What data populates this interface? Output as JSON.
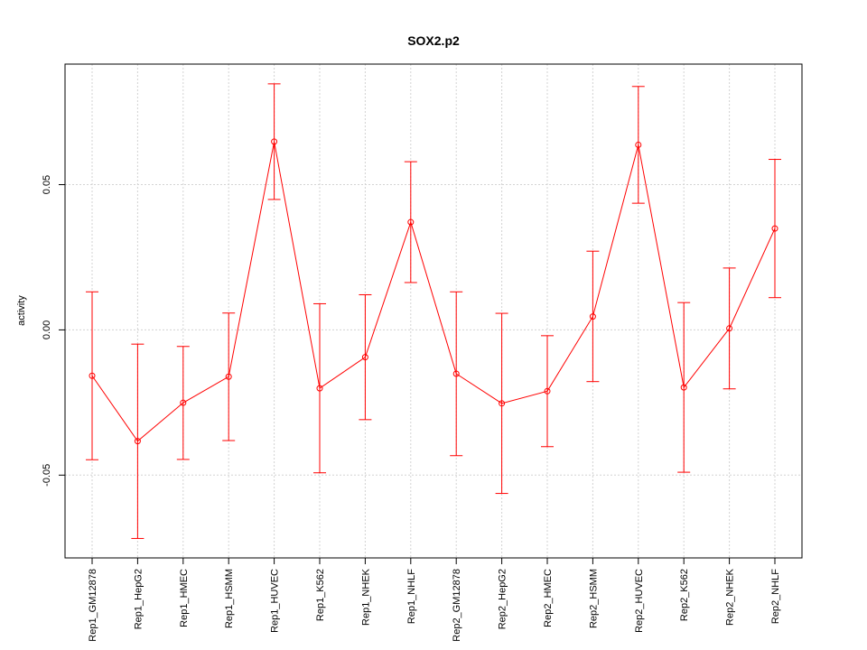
{
  "chart_data": {
    "type": "line",
    "title": "SOX2.p2",
    "xlabel": "",
    "ylabel": "activity",
    "ylim": [
      -0.0785,
      0.0915
    ],
    "yticks": [
      -0.05,
      0.0,
      0.05
    ],
    "ytick_labels": [
      "-0.05",
      "0.00",
      "0.05"
    ],
    "grid": true,
    "categories": [
      "Rep1_GM12878",
      "Rep1_HepG2",
      "Rep1_HMEC",
      "Rep1_HSMM",
      "Rep1_HUVEC",
      "Rep1_K562",
      "Rep1_NHEK",
      "Rep1_NHLF",
      "Rep2_GM12878",
      "Rep2_HepG2",
      "Rep2_HMEC",
      "Rep2_HSMM",
      "Rep2_HUVEC",
      "Rep2_K562",
      "Rep2_NHEK",
      "Rep2_NHLF"
    ],
    "series": [
      {
        "color": "#ff0000",
        "values": [
          -0.0158,
          -0.0383,
          -0.0251,
          -0.0161,
          0.0648,
          -0.0201,
          -0.0094,
          0.0371,
          -0.0151,
          -0.0253,
          -0.0211,
          0.0046,
          0.0637,
          -0.0198,
          0.0005,
          0.0349
        ],
        "upper": [
          0.0131,
          -0.0049,
          -0.0057,
          0.0058,
          0.0847,
          0.009,
          0.0121,
          0.0579,
          0.0131,
          0.0057,
          -0.002,
          0.0271,
          0.0838,
          0.0094,
          0.0213,
          0.0587
        ],
        "lower": [
          -0.0447,
          -0.0718,
          -0.0446,
          -0.0381,
          0.0449,
          -0.0492,
          -0.0309,
          0.0163,
          -0.0433,
          -0.0563,
          -0.0402,
          -0.0178,
          0.0436,
          -0.049,
          -0.0203,
          0.0111
        ]
      }
    ]
  }
}
